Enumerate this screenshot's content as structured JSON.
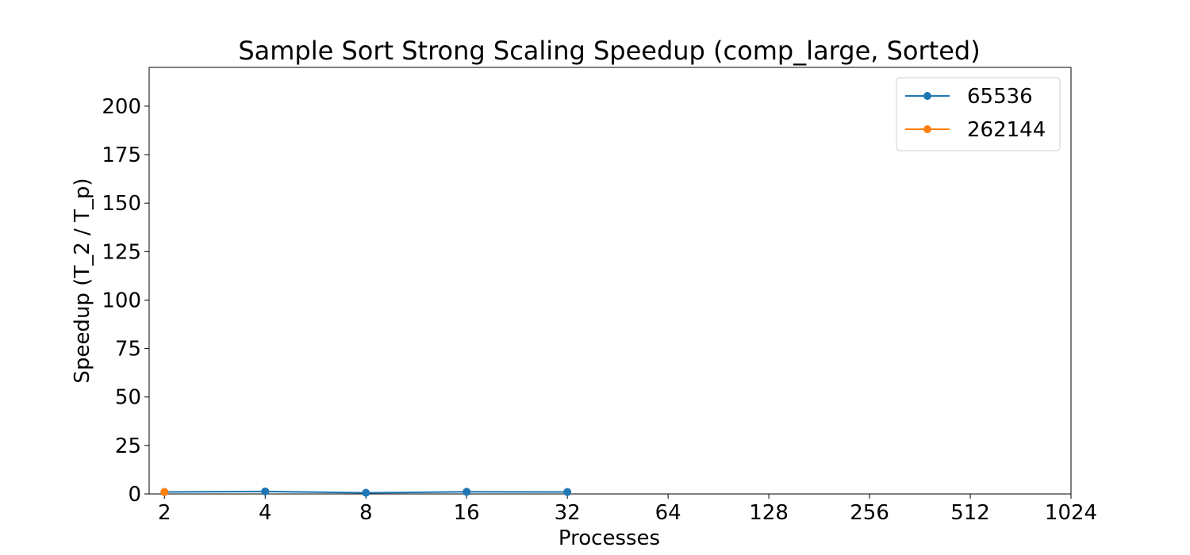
{
  "chart_data": {
    "type": "line",
    "title": "Sample Sort Strong Scaling Speedup (comp_large, Sorted)",
    "xlabel": "Processes",
    "ylabel": "Speedup (T_2 / T_p)",
    "x_scale": "log2",
    "x_ticks": [
      2,
      4,
      8,
      16,
      32,
      64,
      128,
      256,
      512,
      1024
    ],
    "x_tick_labels": [
      "2",
      "4",
      "8",
      "16",
      "32",
      "64",
      "128",
      "256",
      "512",
      "1024"
    ],
    "y_ticks": [
      0,
      25,
      50,
      75,
      100,
      125,
      150,
      175,
      200
    ],
    "y_tick_labels": [
      "0",
      "25",
      "50",
      "75",
      "100",
      "125",
      "150",
      "175",
      "200"
    ],
    "xlim": [
      1.8,
      1024
    ],
    "ylim": [
      0,
      220
    ],
    "grid": false,
    "legend_position": "top-right",
    "series": [
      {
        "name": "65536",
        "color": "#1f77b4",
        "marker": "circle",
        "x": [
          2,
          4,
          8,
          16,
          32
        ],
        "y": [
          1.0,
          1.3,
          0.6,
          1.1,
          1.0
        ]
      },
      {
        "name": "262144",
        "color": "#ff7f0e",
        "marker": "circle",
        "x": [
          2
        ],
        "y": [
          1.0
        ]
      }
    ]
  }
}
